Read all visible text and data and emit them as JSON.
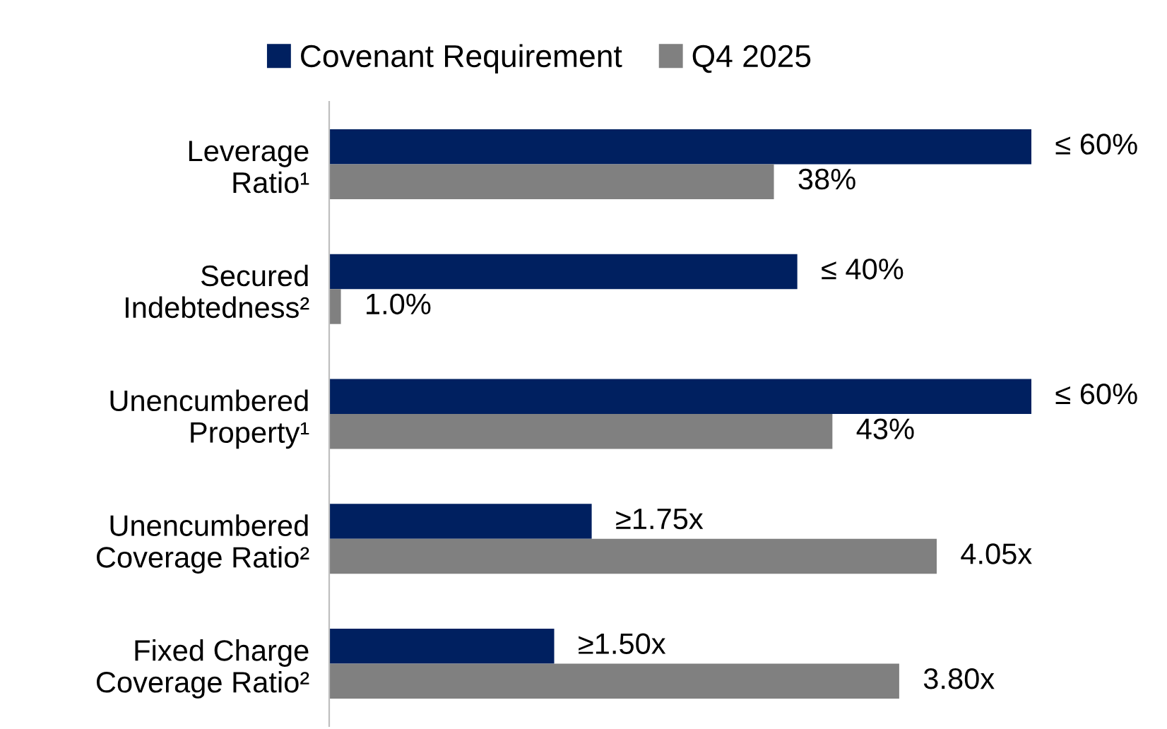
{
  "chart_data": [
    {
      "type": "bar",
      "orientation": "horizontal",
      "legend": "top",
      "tick_labels": "y",
      "categories": [
        "Leverage\nRatio¹",
        "Secured\nIndebtedness²",
        "Unencumbered\nProperty¹"
      ],
      "series": [
        {
          "name": "Covenant Requirement",
          "color": "#002060",
          "values": [
            60,
            40,
            60
          ],
          "value_labels": [
            "≤ 60%",
            "≤ 40%",
            "≤ 60%"
          ]
        },
        {
          "name": "Q4 2025",
          "color": "#808080",
          "values": [
            38,
            1.0,
            43
          ],
          "value_labels": [
            "38%",
            "1.0%",
            "43%"
          ]
        }
      ]
    },
    {
      "type": "bar",
      "orientation": "horizontal",
      "tick_labels": "y",
      "categories": [
        "Unencumbered\nCoverage Ratio²",
        "Fixed Charge\nCoverage Ratio²"
      ],
      "series": [
        {
          "color": "#002060",
          "values": [
            1.75,
            1.5
          ],
          "value_labels": [
            "≥1.75x",
            "≥1.50x"
          ]
        },
        {
          "color": "#808080",
          "values": [
            4.05,
            3.8
          ],
          "value_labels": [
            "4.05x",
            "3.80x"
          ]
        }
      ]
    }
  ]
}
